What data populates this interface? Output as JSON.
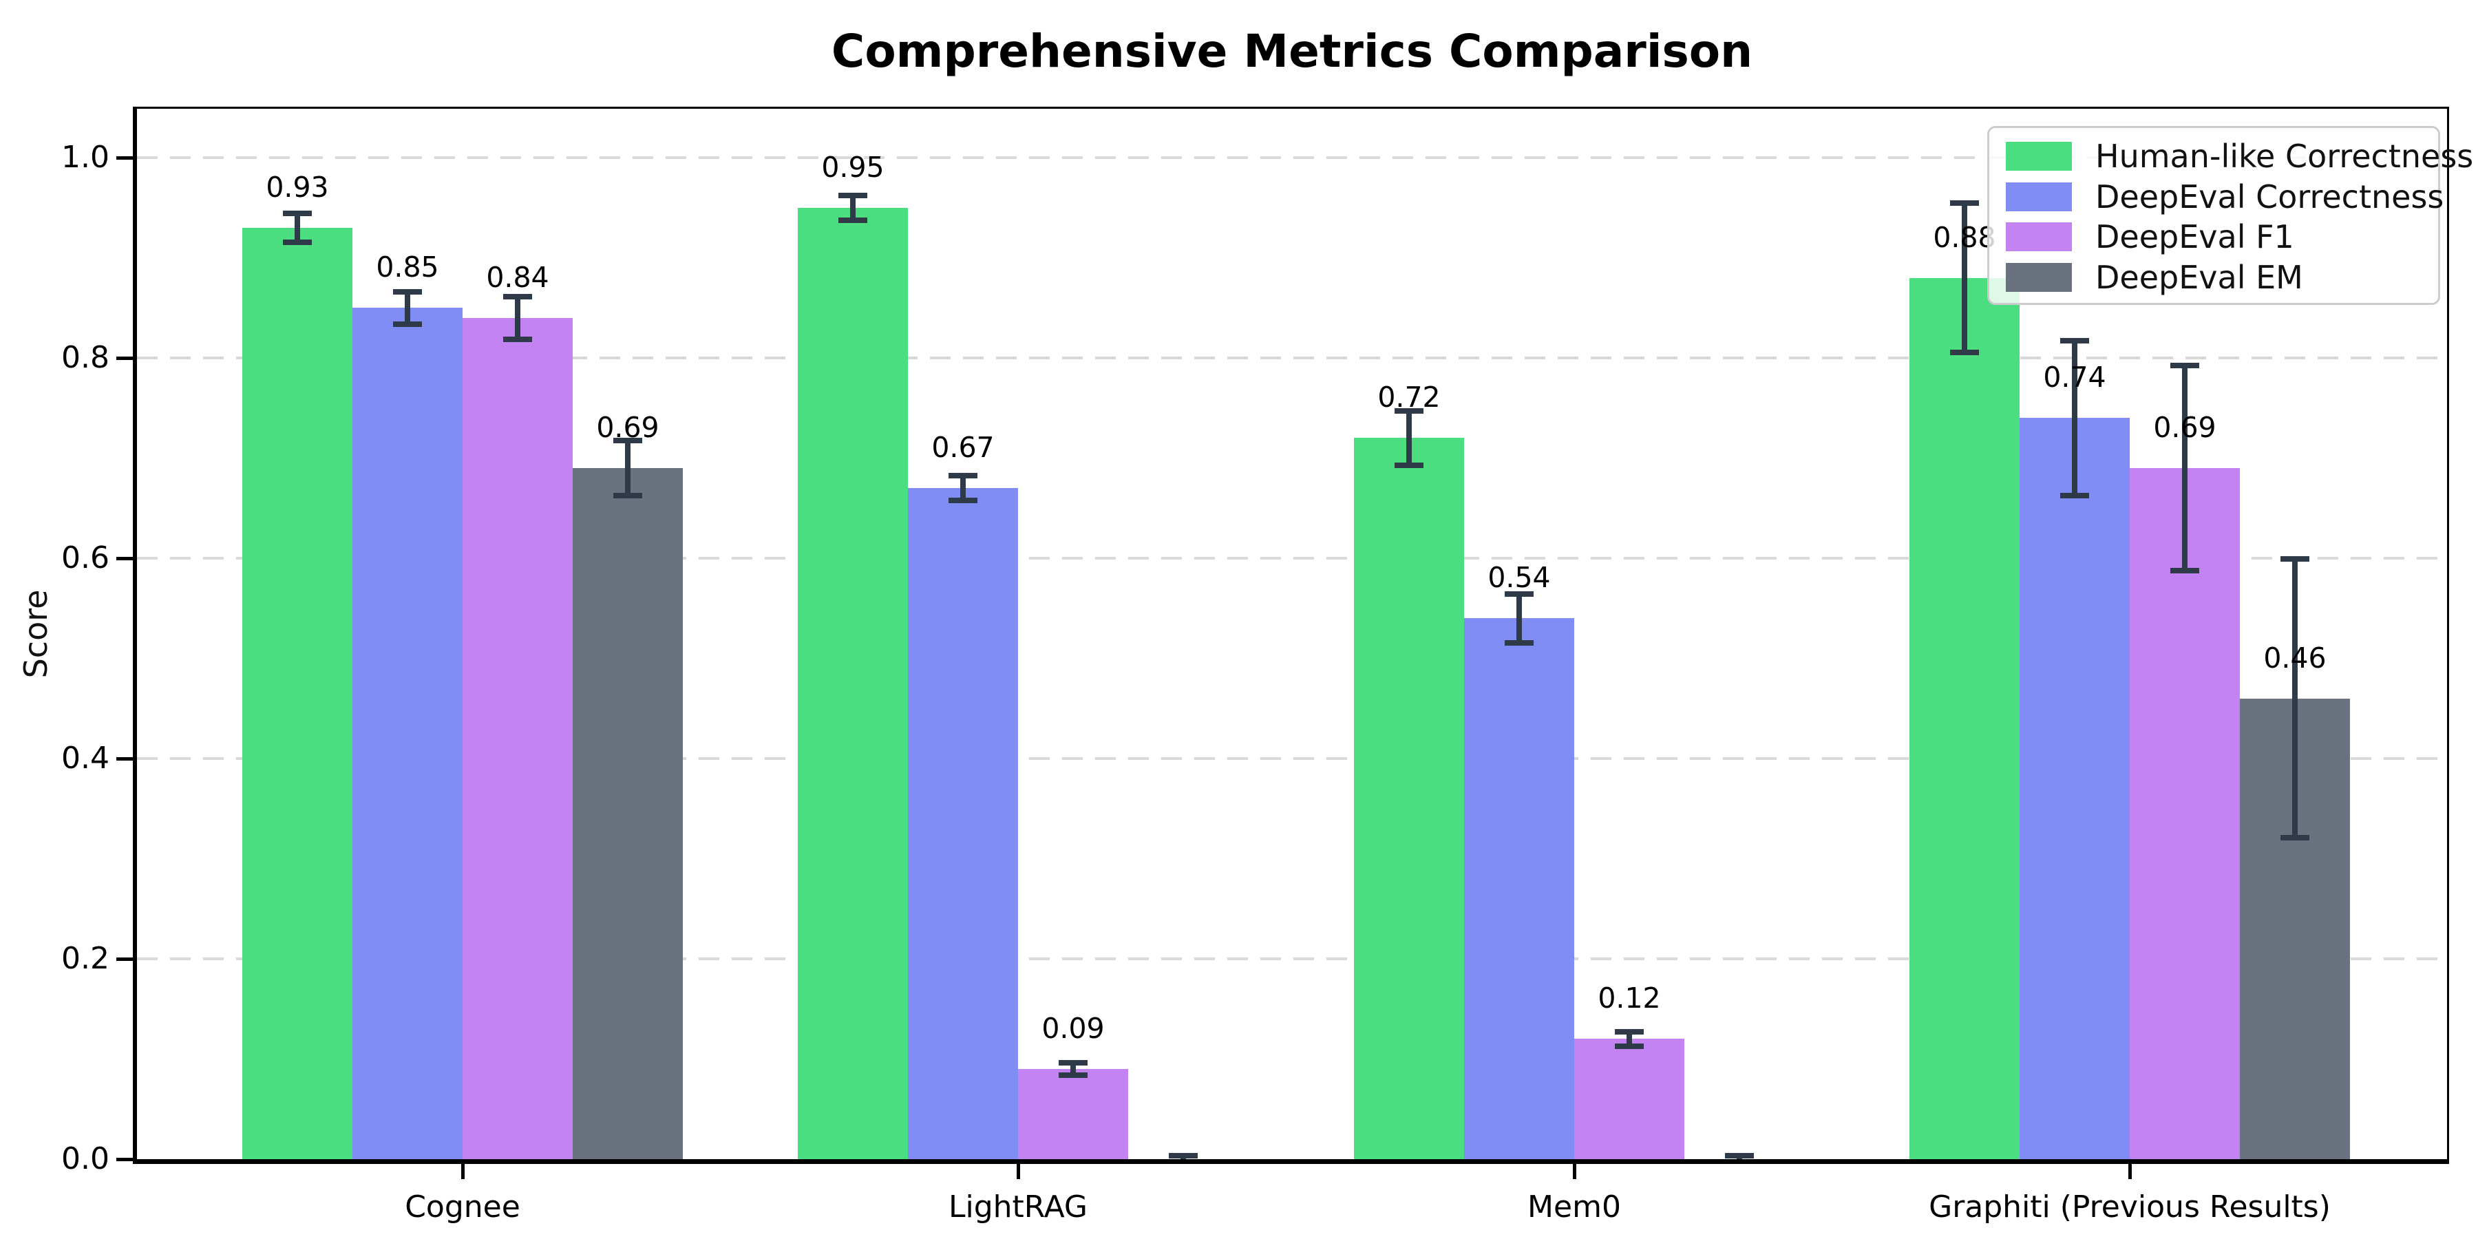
{
  "chart_data": {
    "type": "bar",
    "title": "Comprehensive Metrics Comparison",
    "ylabel": "Score",
    "xlabel": "",
    "categories": [
      "Cognee",
      "LightRAG",
      "Mem0",
      "Graphiti (Previous Results)"
    ],
    "series": [
      {
        "name": "Human-like Correctness",
        "color": "#4ade80",
        "values": [
          0.93,
          0.95,
          0.72,
          0.88
        ],
        "errors": [
          0.015,
          0.013,
          0.028,
          0.075
        ],
        "labels": [
          "0.93",
          "0.95",
          "0.72",
          "0.88"
        ]
      },
      {
        "name": "DeepEval Correctness",
        "color": "#808df5",
        "values": [
          0.85,
          0.67,
          0.54,
          0.74
        ],
        "errors": [
          0.017,
          0.013,
          0.025,
          0.078
        ],
        "labels": [
          "0.85",
          "0.67",
          "0.54",
          "0.74"
        ]
      },
      {
        "name": "DeepEval F1",
        "color": "#c383f3",
        "values": [
          0.84,
          0.09,
          0.12,
          0.69
        ],
        "errors": [
          0.022,
          0.007,
          0.008,
          0.103
        ],
        "labels": [
          "0.84",
          "0.09",
          "0.12",
          "0.69"
        ]
      },
      {
        "name": "DeepEval EM",
        "color": "#6a7280",
        "values": [
          0.69,
          0.0,
          0.0,
          0.46
        ],
        "errors": [
          0.028,
          0.004,
          0.004,
          0.14
        ],
        "labels": [
          "0.69",
          "",
          "",
          "0.46"
        ]
      }
    ],
    "yticks": [
      "0.0",
      "0.2",
      "0.4",
      "0.6",
      "0.8",
      "1.0"
    ],
    "ytick_values": [
      0.0,
      0.2,
      0.4,
      0.6,
      0.8,
      1.0
    ],
    "ylim": [
      0,
      1.05
    ],
    "grid": "horizontal dashed",
    "legend_position": "upper right",
    "error_bar_color": "#2e3a48",
    "gridline_color": "#d9d9d9"
  }
}
